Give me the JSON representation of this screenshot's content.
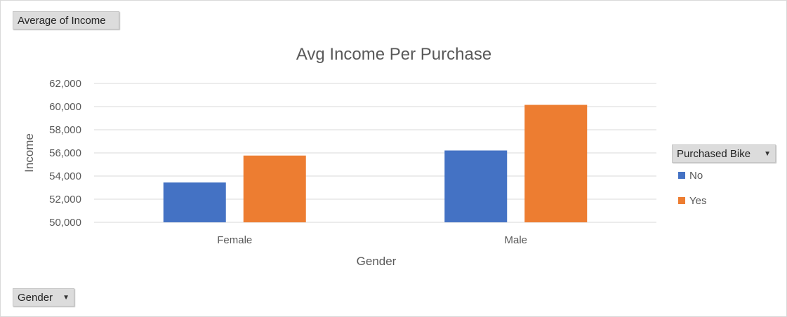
{
  "value_field": {
    "label": "Average of Income"
  },
  "axis_field": {
    "label": "Gender",
    "icon": "dropdown-arrow-icon"
  },
  "legend_field": {
    "label": "Purchased Bike",
    "icon": "dropdown-arrow-icon"
  },
  "colors": {
    "No": "#4472c4",
    "Yes": "#ed7d31",
    "grid": "#d9d9d9",
    "text": "#595959"
  },
  "chart_data": {
    "type": "bar",
    "title": "Avg Income Per Purchase",
    "xlabel": "Gender",
    "ylabel": "Income",
    "categories": [
      "Female",
      "Male"
    ],
    "series": [
      {
        "name": "No",
        "values": [
          53440,
          56210
        ]
      },
      {
        "name": "Yes",
        "values": [
          55770,
          60150
        ]
      }
    ],
    "ylim": [
      50000,
      62000
    ],
    "yticks": [
      50000,
      52000,
      54000,
      56000,
      58000,
      60000,
      62000
    ],
    "ytick_labels": [
      "50,000",
      "52,000",
      "54,000",
      "56,000",
      "58,000",
      "60,000",
      "62,000"
    ],
    "grid": true,
    "legend_position": "right"
  }
}
